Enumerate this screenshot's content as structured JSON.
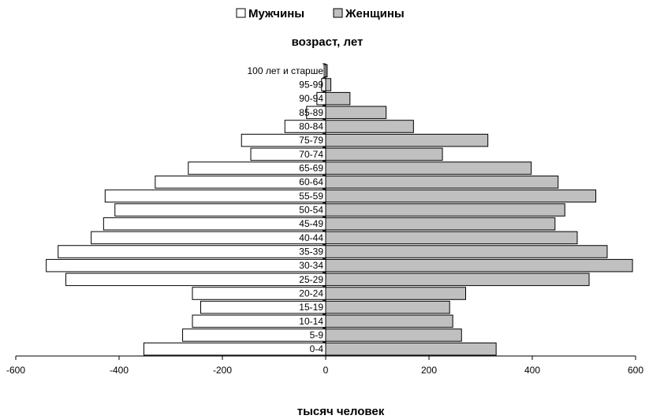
{
  "chart_data": {
    "type": "bar",
    "orientation": "horizontal",
    "layout": "population-pyramid",
    "categories": [
      "0-4",
      "5-9",
      "10-14",
      "15-19",
      "20-24",
      "25-29",
      "30-34",
      "35-39",
      "40-44",
      "45-49",
      "50-54",
      "55-59",
      "60-64",
      "65-69",
      "70-74",
      "75-79",
      "80-84",
      "85-89",
      "90-94",
      "95-99",
      "100 лет и старше"
    ],
    "series": [
      {
        "name": "Мужчины",
        "color": "#ffffff",
        "values": [
          -352,
          -277,
          -258,
          -242,
          -258,
          -503,
          -541,
          -518,
          -454,
          -430,
          -408,
          -427,
          -330,
          -266,
          -145,
          -163,
          -79,
          -37,
          -17,
          -8,
          -3
        ]
      },
      {
        "name": "Женщины",
        "color": "#c0c0c0",
        "values": [
          330,
          263,
          246,
          240,
          271,
          510,
          594,
          545,
          487,
          444,
          463,
          523,
          450,
          398,
          226,
          314,
          170,
          117,
          47,
          10,
          3
        ]
      }
    ],
    "title": "возраст, лет",
    "xlabel": "тысяч человек",
    "xlim": [
      -600,
      600
    ],
    "xticks": [
      -600,
      -400,
      -200,
      0,
      200,
      400,
      600
    ],
    "legend_position": "top"
  }
}
